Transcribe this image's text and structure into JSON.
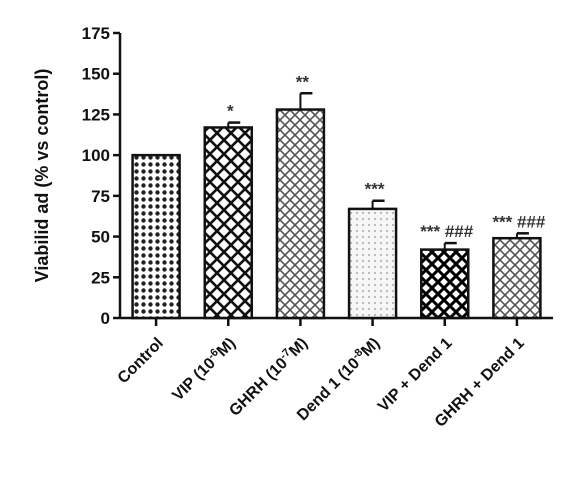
{
  "chart_data": {
    "type": "bar",
    "title": "",
    "xlabel": "",
    "ylabel": "Viabilid ad (% vs control)",
    "ylim": [
      0,
      175
    ],
    "yticks": [
      0,
      25,
      50,
      75,
      100,
      125,
      150,
      175
    ],
    "grid": false,
    "categories": [
      {
        "id": "control",
        "parts": [
          {
            "t": "Control"
          }
        ]
      },
      {
        "id": "vip",
        "parts": [
          {
            "t": "VIP (10"
          },
          {
            "t": "-6",
            "sup": true
          },
          {
            "t": "M)"
          }
        ]
      },
      {
        "id": "ghrh",
        "parts": [
          {
            "t": "GHRH (10"
          },
          {
            "t": "-7",
            "sup": true
          },
          {
            "t": "M)"
          }
        ]
      },
      {
        "id": "dend",
        "parts": [
          {
            "t": "Dend 1 (10"
          },
          {
            "t": "-8",
            "sup": true
          },
          {
            "t": "M)"
          }
        ]
      },
      {
        "id": "vip-dend",
        "parts": [
          {
            "t": "VIP + Dend 1"
          }
        ]
      },
      {
        "id": "ghrh-dend",
        "parts": [
          {
            "t": "GHRH + Dend 1"
          }
        ]
      }
    ],
    "values": [
      100,
      117,
      128,
      67,
      42,
      49
    ],
    "errors": [
      0,
      3,
      10,
      5,
      4,
      3
    ],
    "annotations": [
      "",
      "*",
      "**",
      "***",
      "*** ###",
      "*** ###"
    ],
    "patterns": [
      "dots",
      "crosshatch",
      "crosshatch-light",
      "light-dots",
      "crosshatch-dense",
      "crosshatch-light"
    ]
  }
}
